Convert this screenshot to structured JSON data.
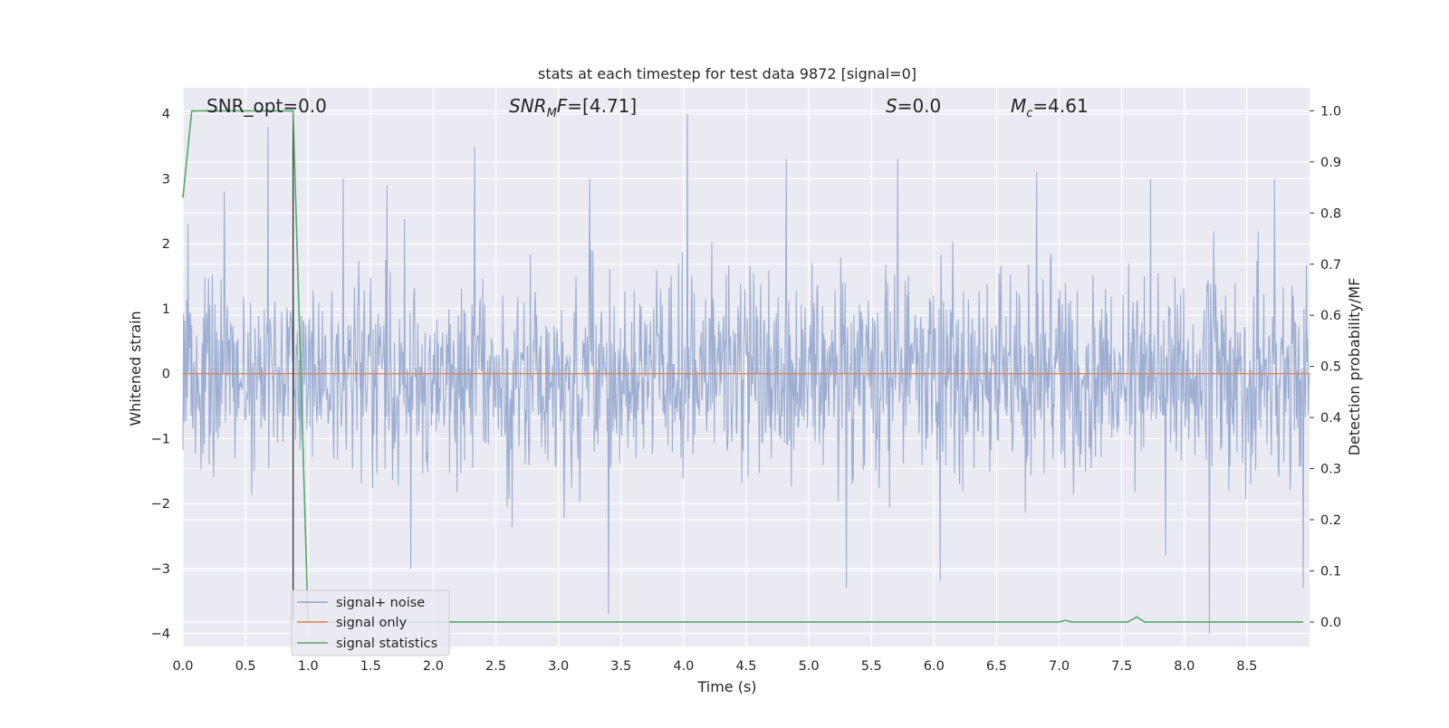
{
  "chart_data": {
    "type": "line",
    "title": "stats at each timestep for test data 9872 [signal=0]",
    "xlabel": "Time (s)",
    "ylabel_left": "Whitened strain",
    "ylabel_right": "Detection probability/MF",
    "xlim": [
      0.0,
      9.0
    ],
    "ylim_left": [
      -4.2,
      4.4
    ],
    "ylim_right": [
      -0.048,
      1.045
    ],
    "x_ticks": [
      "0.0",
      "0.5",
      "1.0",
      "1.5",
      "2.0",
      "2.5",
      "3.0",
      "3.5",
      "4.0",
      "4.5",
      "5.0",
      "5.5",
      "6.0",
      "6.5",
      "7.0",
      "7.5",
      "8.0",
      "8.5"
    ],
    "y_ticks_left": [
      "4",
      "3",
      "2",
      "1",
      "0",
      "−1",
      "−2",
      "−3",
      "−4"
    ],
    "y_ticks_right": [
      "1.0",
      "0.9",
      "0.8",
      "0.7",
      "0.6",
      "0.5",
      "0.4",
      "0.3",
      "0.2",
      "0.1",
      "0.0"
    ],
    "grid": true,
    "legend_position": "bottom-left",
    "annotations": {
      "snr_opt": "SNR_opt=0.0",
      "snr_mf": "=[4.71]",
      "s_stat": "=0.0",
      "mc": "=4.61"
    },
    "series": [
      {
        "name": "signal+ noise",
        "color": "#8fa3cc",
        "axis": "left",
        "description_values": "whitened noise samples, approx. zero-mean, bulk within [-1.6, 1.6], peaks to about +4.0 and -4.0",
        "peaks": [
          {
            "x": 0.04,
            "y": 2.3
          },
          {
            "x": 0.33,
            "y": 2.8
          },
          {
            "x": 0.68,
            "y": 3.8
          },
          {
            "x": 1.28,
            "y": 3.0
          },
          {
            "x": 1.63,
            "y": 2.9
          },
          {
            "x": 2.33,
            "y": 3.5
          },
          {
            "x": 3.25,
            "y": 3.0
          },
          {
            "x": 4.03,
            "y": 4.0
          },
          {
            "x": 4.82,
            "y": 3.3
          },
          {
            "x": 5.71,
            "y": 3.3
          },
          {
            "x": 6.82,
            "y": 3.1
          },
          {
            "x": 7.73,
            "y": 3.0
          },
          {
            "x": 8.72,
            "y": 3.0
          },
          {
            "x": 1.82,
            "y": -3.0
          },
          {
            "x": 3.4,
            "y": -3.7
          },
          {
            "x": 5.3,
            "y": -3.3
          },
          {
            "x": 6.05,
            "y": -3.2
          },
          {
            "x": 7.85,
            "y": -2.8
          },
          {
            "x": 8.2,
            "y": -4.0
          },
          {
            "x": 8.95,
            "y": -3.3
          }
        ]
      },
      {
        "name": "signal only",
        "color": "#dd8452",
        "axis": "left",
        "x": [
          0.0,
          9.0
        ],
        "y": [
          0.0,
          0.0
        ]
      },
      {
        "name": "signal statistics",
        "color": "#55a868",
        "axis": "right",
        "x": [
          0.0,
          0.07,
          0.12,
          0.2,
          0.5,
          0.87,
          0.88,
          1.0,
          2.0,
          3.0,
          4.0,
          5.0,
          6.0,
          7.0,
          7.05,
          7.1,
          7.2,
          7.55,
          7.62,
          7.68,
          7.75,
          8.0,
          8.5,
          8.95
        ],
        "y": [
          0.83,
          1.0,
          1.0,
          1.0,
          1.0,
          1.0,
          1.0,
          0.0,
          0.0,
          0.0,
          0.0,
          0.0,
          0.0,
          0.0,
          0.003,
          0.0,
          0.0,
          0.0,
          0.01,
          0.0,
          0.0,
          0.0,
          0.0,
          0.0
        ]
      }
    ],
    "vertical_marker_x": 0.88
  }
}
